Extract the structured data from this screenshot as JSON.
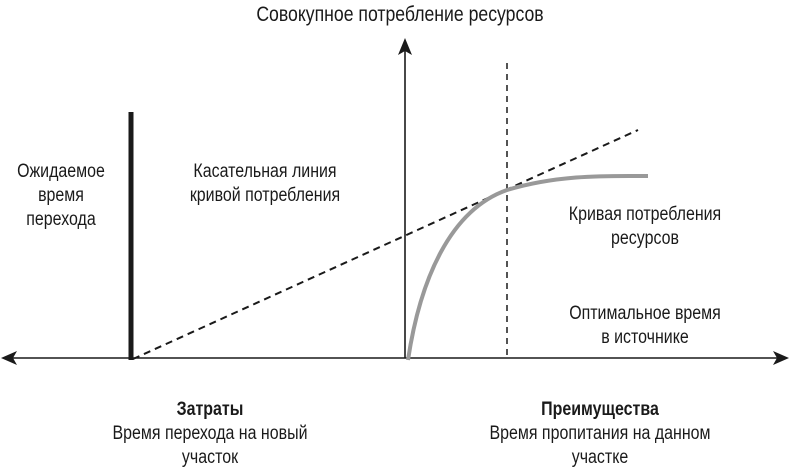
{
  "title": "Совокупное потребление ресурсов",
  "labels": {
    "expected_time": [
      "Ожидаемое",
      "время",
      "перехода"
    ],
    "tangent": [
      "Касательная линия",
      "кривой потребления"
    ],
    "curve": [
      "Кривая потребления",
      "ресурсов"
    ],
    "optimal": [
      "Оптимальное время",
      "в источнике"
    ]
  },
  "costs": {
    "heading": "Затраты",
    "lines": [
      "Время перехода на новый",
      "участок"
    ]
  },
  "benefits": {
    "heading": "Преимущества",
    "lines": [
      "Время пропитания на данном",
      "участке"
    ]
  },
  "colors": {
    "curve": "#999999",
    "lines": "#1a1a1a"
  }
}
